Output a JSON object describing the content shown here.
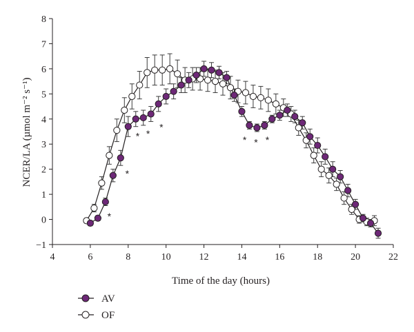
{
  "chart_data": {
    "type": "line",
    "title": "",
    "xlabel": "Time of the day (hours)",
    "ylabel": "NCER/LA (µmol m⁻² s⁻¹)",
    "xlim": [
      4,
      22
    ],
    "ylim": [
      -1,
      8
    ],
    "xticks": [
      4,
      6,
      8,
      10,
      12,
      14,
      16,
      18,
      20,
      22
    ],
    "yticks": [
      -1,
      0,
      1,
      2,
      3,
      4,
      5,
      6,
      7,
      8
    ],
    "grid": false,
    "legend": "bottom-left",
    "series": [
      {
        "name": "AV",
        "marker": "filled",
        "color": "#6d2877",
        "points": [
          {
            "x": 6.0,
            "y": -0.15,
            "err": 0.1
          },
          {
            "x": 6.4,
            "y": 0.05,
            "err": 0.1
          },
          {
            "x": 6.8,
            "y": 0.7,
            "err": 0.15
          },
          {
            "x": 7.2,
            "y": 1.75,
            "err": 0.25
          },
          {
            "x": 7.6,
            "y": 2.45,
            "err": 0.3
          },
          {
            "x": 8.0,
            "y": 3.7,
            "err": 0.4
          },
          {
            "x": 8.4,
            "y": 4.0,
            "err": 0.3
          },
          {
            "x": 8.8,
            "y": 4.05,
            "err": 0.3
          },
          {
            "x": 9.2,
            "y": 4.2,
            "err": 0.3
          },
          {
            "x": 9.6,
            "y": 4.6,
            "err": 0.3
          },
          {
            "x": 10.0,
            "y": 4.9,
            "err": 0.3
          },
          {
            "x": 10.4,
            "y": 5.1,
            "err": 0.3
          },
          {
            "x": 10.8,
            "y": 5.35,
            "err": 0.3
          },
          {
            "x": 11.2,
            "y": 5.55,
            "err": 0.3
          },
          {
            "x": 11.6,
            "y": 5.75,
            "err": 0.3
          },
          {
            "x": 12.0,
            "y": 6.0,
            "err": 0.3
          },
          {
            "x": 12.4,
            "y": 5.95,
            "err": 0.3
          },
          {
            "x": 12.8,
            "y": 5.85,
            "err": 0.25
          },
          {
            "x": 13.2,
            "y": 5.65,
            "err": 0.25
          },
          {
            "x": 13.6,
            "y": 4.95,
            "err": 0.25
          },
          {
            "x": 14.0,
            "y": 4.3,
            "err": 0.2
          },
          {
            "x": 14.4,
            "y": 3.75,
            "err": 0.15
          },
          {
            "x": 14.8,
            "y": 3.65,
            "err": 0.15
          },
          {
            "x": 15.2,
            "y": 3.75,
            "err": 0.15
          },
          {
            "x": 15.6,
            "y": 4.0,
            "err": 0.15
          },
          {
            "x": 16.0,
            "y": 4.15,
            "err": 0.2
          },
          {
            "x": 16.4,
            "y": 4.35,
            "err": 0.25
          },
          {
            "x": 16.8,
            "y": 4.1,
            "err": 0.25
          },
          {
            "x": 17.2,
            "y": 3.85,
            "err": 0.25
          },
          {
            "x": 17.6,
            "y": 3.3,
            "err": 0.3
          },
          {
            "x": 18.0,
            "y": 2.95,
            "err": 0.3
          },
          {
            "x": 18.4,
            "y": 2.5,
            "err": 0.3
          },
          {
            "x": 18.8,
            "y": 2.0,
            "err": 0.3
          },
          {
            "x": 19.2,
            "y": 1.7,
            "err": 0.25
          },
          {
            "x": 19.6,
            "y": 1.15,
            "err": 0.25
          },
          {
            "x": 20.0,
            "y": 0.6,
            "err": 0.2
          },
          {
            "x": 20.4,
            "y": 0.05,
            "err": 0.15
          },
          {
            "x": 20.8,
            "y": -0.15,
            "err": 0.15
          },
          {
            "x": 21.2,
            "y": -0.55,
            "err": 0.2
          }
        ]
      },
      {
        "name": "OF",
        "marker": "open",
        "color": "#ffffff",
        "points": [
          {
            "x": 5.8,
            "y": -0.05,
            "err": 0.1
          },
          {
            "x": 6.2,
            "y": 0.45,
            "err": 0.15
          },
          {
            "x": 6.6,
            "y": 1.45,
            "err": 0.25
          },
          {
            "x": 7.0,
            "y": 2.55,
            "err": 0.35
          },
          {
            "x": 7.4,
            "y": 3.55,
            "err": 0.45
          },
          {
            "x": 7.8,
            "y": 4.35,
            "err": 0.5
          },
          {
            "x": 8.2,
            "y": 4.9,
            "err": 0.5
          },
          {
            "x": 8.6,
            "y": 5.35,
            "err": 0.55
          },
          {
            "x": 9.0,
            "y": 5.85,
            "err": 0.6
          },
          {
            "x": 9.4,
            "y": 5.95,
            "err": 0.6
          },
          {
            "x": 9.8,
            "y": 5.95,
            "err": 0.6
          },
          {
            "x": 10.2,
            "y": 6.0,
            "err": 0.6
          },
          {
            "x": 10.6,
            "y": 5.8,
            "err": 0.55
          },
          {
            "x": 11.0,
            "y": 5.55,
            "err": 0.5
          },
          {
            "x": 11.4,
            "y": 5.6,
            "err": 0.45
          },
          {
            "x": 11.8,
            "y": 5.6,
            "err": 0.45
          },
          {
            "x": 12.2,
            "y": 5.55,
            "err": 0.45
          },
          {
            "x": 12.6,
            "y": 5.5,
            "err": 0.45
          },
          {
            "x": 13.0,
            "y": 5.4,
            "err": 0.45
          },
          {
            "x": 13.4,
            "y": 5.25,
            "err": 0.45
          },
          {
            "x": 13.8,
            "y": 5.1,
            "err": 0.45
          },
          {
            "x": 14.2,
            "y": 5.05,
            "err": 0.45
          },
          {
            "x": 14.6,
            "y": 4.9,
            "err": 0.45
          },
          {
            "x": 15.0,
            "y": 4.85,
            "err": 0.45
          },
          {
            "x": 15.4,
            "y": 4.75,
            "err": 0.45
          },
          {
            "x": 15.8,
            "y": 4.6,
            "err": 0.4
          },
          {
            "x": 16.2,
            "y": 4.45,
            "err": 0.35
          },
          {
            "x": 16.6,
            "y": 4.2,
            "err": 0.3
          },
          {
            "x": 17.0,
            "y": 3.65,
            "err": 0.3
          },
          {
            "x": 17.4,
            "y": 3.15,
            "err": 0.3
          },
          {
            "x": 17.8,
            "y": 2.55,
            "err": 0.3
          },
          {
            "x": 18.2,
            "y": 2.0,
            "err": 0.3
          },
          {
            "x": 18.6,
            "y": 1.75,
            "err": 0.3
          },
          {
            "x": 19.0,
            "y": 1.4,
            "err": 0.25
          },
          {
            "x": 19.4,
            "y": 0.85,
            "err": 0.25
          },
          {
            "x": 19.8,
            "y": 0.4,
            "err": 0.2
          },
          {
            "x": 20.2,
            "y": 0.0,
            "err": 0.15
          },
          {
            "x": 20.6,
            "y": -0.1,
            "err": 0.15
          },
          {
            "x": 21.0,
            "y": -0.05,
            "err": 0.2
          }
        ]
      }
    ],
    "annotations": [
      {
        "text": "*",
        "x": 7.0,
        "y": 0.15
      },
      {
        "text": "*",
        "x": 7.95,
        "y": 1.85
      },
      {
        "text": "*",
        "x": 8.5,
        "y": 3.35
      },
      {
        "text": "*",
        "x": 9.05,
        "y": 3.45
      },
      {
        "text": "*",
        "x": 9.75,
        "y": 3.7
      },
      {
        "text": "*",
        "x": 14.15,
        "y": 3.2
      },
      {
        "text": "*",
        "x": 14.75,
        "y": 3.1
      },
      {
        "text": "*",
        "x": 15.35,
        "y": 3.2
      }
    ]
  }
}
